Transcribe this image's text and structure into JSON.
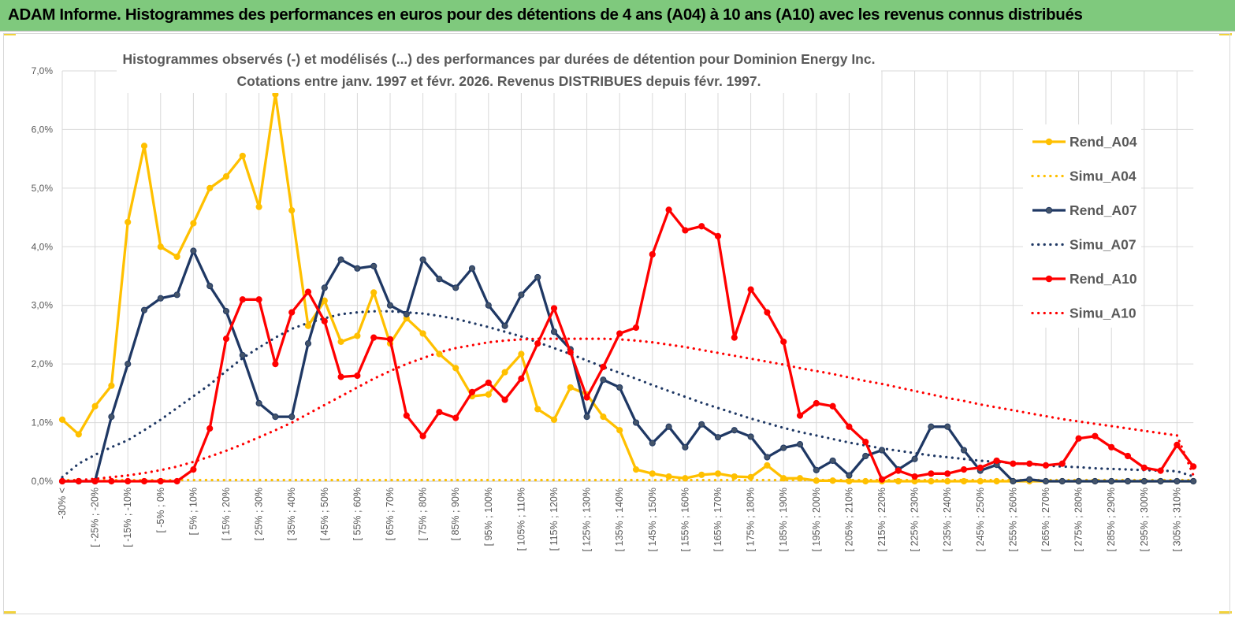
{
  "banner": {
    "title": "ADAM Informe. Histogrammes des performances en euros pour des détentions de 4 ans (A04) à 10 ans (A10) avec les revenus connus distribués"
  },
  "colors": {
    "banner_bg": "#7fc97d",
    "a04": "#ffc000",
    "a07": "#1f3864",
    "a10": "#ff0000",
    "grid": "#d9d9d9"
  },
  "chart_data": {
    "type": "line",
    "title": "Histogrammes observés (-) et modélisés (...) des performances par durées de détention pour Dominion Energy Inc.",
    "subtitle": "Cotations entre janv. 1997 et févr. 2026. Revenus DISTRIBUES depuis févr. 1997.",
    "xlabel": "",
    "ylabel": "",
    "ylim": [
      0,
      7
    ],
    "y_ticks": [
      "0,0%",
      "1,0%",
      "2,0%",
      "3,0%",
      "4,0%",
      "5,0%",
      "6,0%",
      "7,0%"
    ],
    "legend_position": "right",
    "categories": [
      "-30% <",
      "",
      "[ -25% ; -20%",
      "",
      "[ -15% ; -10%",
      "",
      "[ -5% ; 0%",
      "",
      "[ 5% ; 10%",
      "",
      "[ 15% ; 20%",
      "",
      "[ 25% ; 30%",
      "",
      "[ 35% ; 40%",
      "",
      "[ 45% ; 50%",
      "",
      "[ 55% ; 60%",
      "",
      "[ 65% ; 70%",
      "",
      "[ 75% ; 80%",
      "",
      "[ 85% ; 90%",
      "",
      "[ 95% ; 100%",
      "",
      "[ 105% ; 110%",
      "",
      "[ 115% ; 120%",
      "",
      "[ 125% ; 130%",
      "",
      "[ 135% ; 140%",
      "",
      "[ 145% ; 150%",
      "",
      "[ 155% ; 160%",
      "",
      "[ 165% ; 170%",
      "",
      "[ 175% ; 180%",
      "",
      "[ 185% ; 190%",
      "",
      "[ 195% ; 200%",
      "",
      "[ 205% ; 210%",
      "",
      "[ 215% ; 220%",
      "",
      "[ 225% ; 230%",
      "",
      "[ 235% ; 240%",
      "",
      "[ 245% ; 250%",
      "",
      "[ 255% ; 260%",
      "",
      "[ 265% ; 270%",
      "",
      "[ 275% ; 280%",
      "",
      "[ 285% ; 290%",
      "",
      "[ 295% ; 300%",
      "",
      "[ 305% ; 310%",
      ""
    ],
    "series": [
      {
        "name": "Rend_A04",
        "style": "solid",
        "values": [
          1.05,
          0.8,
          1.28,
          1.63,
          4.42,
          5.72,
          4.0,
          3.83,
          4.4,
          5.0,
          5.2,
          5.55,
          4.68,
          6.6,
          4.62,
          2.65,
          3.08,
          2.38,
          2.48,
          3.22,
          2.35,
          2.78,
          2.52,
          2.17,
          1.93,
          1.45,
          1.48,
          1.86,
          2.17,
          1.23,
          1.05,
          1.6,
          1.48,
          1.1,
          0.87,
          0.2,
          0.13,
          0.08,
          0.05,
          0.11,
          0.13,
          0.08,
          0.07,
          0.27,
          0.05,
          0.05,
          0.01,
          0.01,
          0.0,
          0.0,
          0.0,
          0.0,
          0.0,
          0.0,
          0.0,
          0.0,
          0.0,
          0.0,
          0.0,
          0.0,
          0.0,
          0.0,
          0.0,
          0.0,
          0.0,
          0.0,
          0.0,
          0.0,
          0.0,
          0.0
        ]
      },
      {
        "name": "Simu_A04",
        "style": "dotted",
        "values": [
          0.02,
          0.02,
          0.02,
          0.02,
          0.02,
          0.02,
          0.02,
          0.02,
          0.02,
          0.02,
          0.02,
          0.02,
          0.02,
          0.02,
          0.02,
          0.02,
          0.02,
          0.02,
          0.02,
          0.02,
          0.02,
          0.02,
          0.02,
          0.02,
          0.02,
          0.02,
          0.02,
          0.02,
          0.02,
          0.02,
          0.02,
          0.02,
          0.02,
          0.02,
          0.02,
          0.02,
          0.02,
          0.02,
          0.02,
          0.02,
          0.02,
          0.02,
          0.02,
          0.02,
          0.02,
          0.02,
          0.02,
          0.02,
          0.02,
          0.02,
          0.02,
          0.02,
          0.02,
          0.02,
          0.02,
          0.02,
          0.02,
          0.02,
          0.02,
          0.02,
          0.02,
          0.02,
          0.02,
          0.02,
          0.02,
          0.02,
          0.02,
          0.02,
          0.02,
          0.02
        ]
      },
      {
        "name": "Rend_A07",
        "style": "solid",
        "values": [
          0.0,
          0.0,
          0.0,
          1.1,
          2.0,
          2.92,
          3.12,
          3.18,
          3.93,
          3.33,
          2.9,
          2.15,
          1.33,
          1.1,
          1.1,
          2.35,
          3.3,
          3.78,
          3.63,
          3.67,
          3.0,
          2.85,
          3.78,
          3.45,
          3.3,
          3.63,
          3.0,
          2.65,
          3.18,
          3.48,
          2.55,
          2.25,
          1.1,
          1.73,
          1.6,
          1.0,
          0.65,
          0.93,
          0.58,
          0.97,
          0.75,
          0.87,
          0.76,
          0.41,
          0.57,
          0.63,
          0.19,
          0.35,
          0.1,
          0.43,
          0.53,
          0.2,
          0.38,
          0.93,
          0.93,
          0.53,
          0.18,
          0.28,
          0.0,
          0.03,
          0.0,
          0.0,
          0.0,
          0.0,
          0.0,
          0.0,
          0.0,
          0.0,
          0.0,
          0.0
        ]
      },
      {
        "name": "Simu_A07",
        "style": "dotted",
        "values": [
          0.07,
          0.3,
          0.45,
          0.58,
          0.7,
          0.87,
          1.05,
          1.25,
          1.45,
          1.65,
          1.88,
          2.1,
          2.28,
          2.45,
          2.6,
          2.7,
          2.78,
          2.85,
          2.88,
          2.9,
          2.9,
          2.88,
          2.86,
          2.82,
          2.77,
          2.7,
          2.63,
          2.55,
          2.47,
          2.37,
          2.27,
          2.17,
          2.06,
          1.95,
          1.85,
          1.75,
          1.64,
          1.54,
          1.44,
          1.34,
          1.25,
          1.16,
          1.07,
          0.99,
          0.91,
          0.84,
          0.78,
          0.72,
          0.66,
          0.61,
          0.56,
          0.52,
          0.48,
          0.44,
          0.41,
          0.38,
          0.35,
          0.33,
          0.31,
          0.29,
          0.27,
          0.25,
          0.24,
          0.22,
          0.21,
          0.2,
          0.19,
          0.18,
          0.17,
          0.08
        ]
      },
      {
        "name": "Rend_A10",
        "style": "solid",
        "values": [
          0.0,
          0.0,
          0.0,
          0.0,
          0.0,
          0.0,
          0.0,
          0.0,
          0.2,
          0.9,
          2.43,
          3.1,
          3.1,
          2.0,
          2.88,
          3.23,
          2.73,
          1.78,
          1.8,
          2.45,
          2.42,
          1.12,
          0.77,
          1.18,
          1.08,
          1.52,
          1.68,
          1.39,
          1.75,
          2.35,
          2.95,
          2.2,
          1.43,
          1.95,
          2.52,
          2.62,
          3.87,
          4.63,
          4.28,
          4.35,
          4.18,
          2.45,
          3.27,
          2.88,
          2.38,
          1.12,
          1.33,
          1.28,
          0.93,
          0.67,
          0.03,
          0.18,
          0.08,
          0.13,
          0.13,
          0.2,
          0.23,
          0.35,
          0.3,
          0.3,
          0.27,
          0.3,
          0.73,
          0.77,
          0.58,
          0.43,
          0.23,
          0.18,
          0.62,
          0.25
        ]
      },
      {
        "name": "Simu_A10",
        "style": "dotted",
        "values": [
          0.0,
          0.02,
          0.04,
          0.07,
          0.1,
          0.14,
          0.19,
          0.25,
          0.33,
          0.42,
          0.52,
          0.63,
          0.75,
          0.87,
          1.0,
          1.15,
          1.3,
          1.45,
          1.6,
          1.75,
          1.88,
          2.0,
          2.1,
          2.2,
          2.27,
          2.32,
          2.37,
          2.4,
          2.42,
          2.43,
          2.43,
          2.43,
          2.43,
          2.43,
          2.42,
          2.4,
          2.37,
          2.33,
          2.29,
          2.24,
          2.19,
          2.14,
          2.09,
          2.04,
          1.99,
          1.93,
          1.88,
          1.83,
          1.77,
          1.71,
          1.66,
          1.6,
          1.54,
          1.48,
          1.42,
          1.37,
          1.31,
          1.26,
          1.21,
          1.16,
          1.11,
          1.06,
          1.02,
          0.98,
          0.94,
          0.9,
          0.86,
          0.82,
          0.78,
          0.1
        ]
      }
    ]
  }
}
